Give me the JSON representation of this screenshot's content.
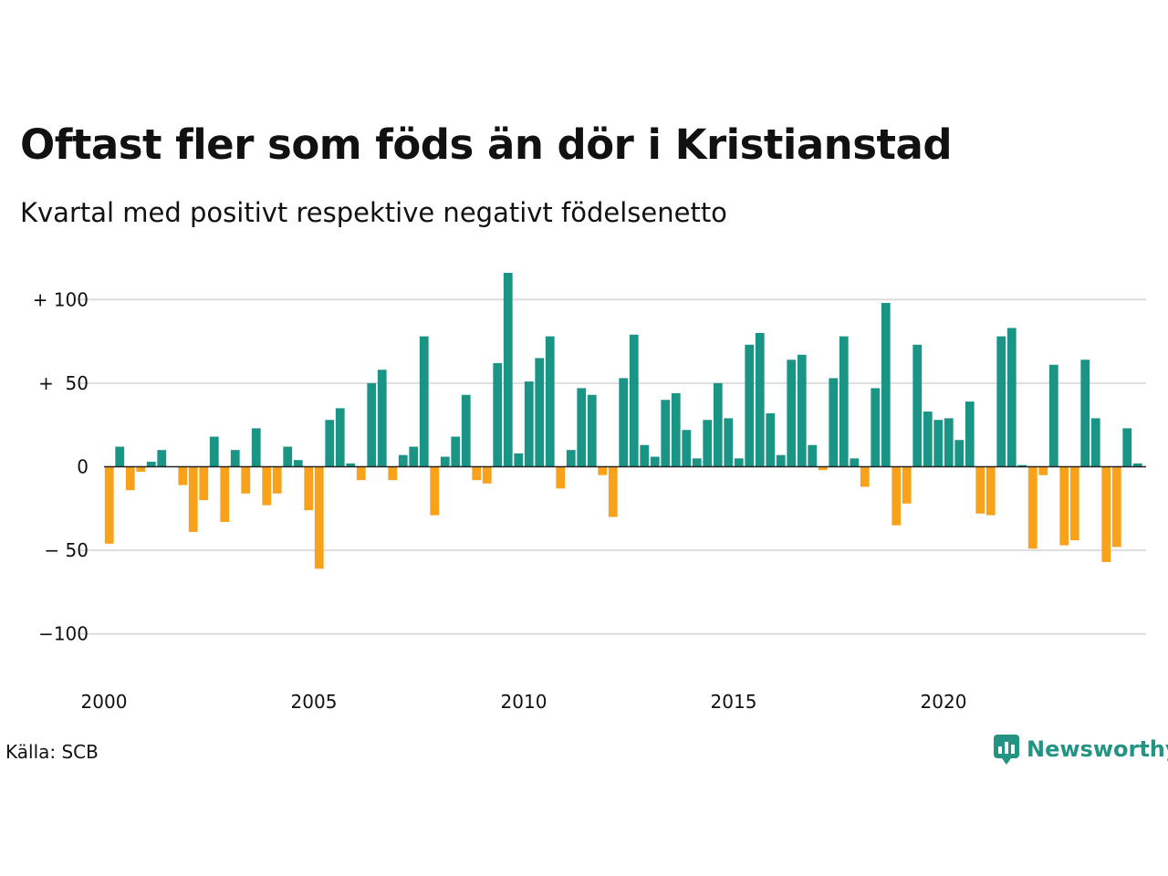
{
  "title": "Oftast fler som föds än dör i Kristianstad",
  "subtitle": "Kvartal med positivt respektive negativt födelsenetto",
  "source": "Källa: SCB",
  "brand": {
    "name": "Newsworthy",
    "icon": "newsworthy-logo-icon",
    "color": "#239484"
  },
  "colors": {
    "positive": "#1a9485",
    "negative": "#f7a21a",
    "gridline": "#dddddd",
    "zeroline": "#222222"
  },
  "chart_data": {
    "type": "bar",
    "title": "Oftast fler som föds än dör i Kristianstad",
    "subtitle": "Kvartal med positivt respektive negativt födelsenetto",
    "xlabel": "",
    "ylabel": "",
    "x_start": 2000,
    "periods_per_year": 4,
    "xlim": [
      2000,
      2024.75
    ],
    "ylim": [
      -120,
      120
    ],
    "grid": true,
    "yticks": [
      {
        "value": 100,
        "label": "+ 100"
      },
      {
        "value": 50,
        "label": "+  50"
      },
      {
        "value": 0,
        "label": "0"
      },
      {
        "value": -50,
        "label": "− 50"
      },
      {
        "value": -100,
        "label": "−100"
      }
    ],
    "xticks": [
      {
        "value": 2000,
        "label": "2000"
      },
      {
        "value": 2005,
        "label": "2005"
      },
      {
        "value": 2010,
        "label": "2010"
      },
      {
        "value": 2015,
        "label": "2015"
      },
      {
        "value": 2020,
        "label": "2020"
      }
    ],
    "values": [
      -46,
      12,
      -14,
      -3,
      3,
      10,
      0,
      -11,
      -39,
      -20,
      18,
      -33,
      10,
      -16,
      23,
      -23,
      -16,
      12,
      4,
      -26,
      -61,
      28,
      35,
      2,
      -8,
      50,
      58,
      -8,
      7,
      12,
      78,
      -29,
      6,
      18,
      43,
      -8,
      -10,
      62,
      116,
      8,
      51,
      65,
      78,
      -13,
      10,
      47,
      43,
      -5,
      -30,
      53,
      79,
      13,
      6,
      40,
      44,
      22,
      5,
      28,
      50,
      29,
      5,
      73,
      80,
      32,
      7,
      64,
      67,
      13,
      -2,
      53,
      78,
      5,
      -12,
      47,
      98,
      -35,
      -22,
      73,
      33,
      28,
      29,
      16,
      39,
      -28,
      -29,
      78,
      83,
      1,
      -49,
      -5,
      61,
      -47,
      -44,
      64,
      29,
      -57,
      -48,
      23,
      2
    ]
  }
}
